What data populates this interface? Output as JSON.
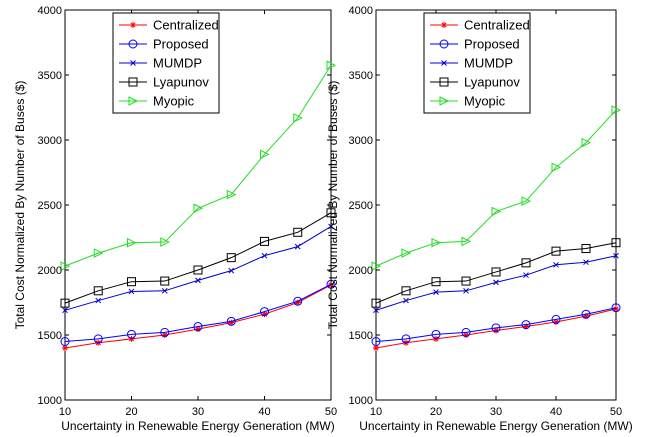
{
  "chart_data": [
    {
      "type": "line",
      "title": "",
      "xlabel": "Uncertainty in Renewable Energy Generation (MW)",
      "ylabel": "Total Cost Normalized By Number of Buses ($)",
      "xlim": [
        10,
        50
      ],
      "ylim": [
        1000,
        4000
      ],
      "xticks": [
        10,
        20,
        30,
        40,
        50
      ],
      "yticks": [
        1000,
        1500,
        2000,
        2500,
        3000,
        3500,
        4000
      ],
      "grid": false,
      "legend_position": "top-left",
      "x": [
        10,
        15,
        20,
        25,
        30,
        35,
        40,
        45,
        50
      ],
      "series": [
        {
          "name": "Centralized",
          "color": "#ff0000",
          "marker": "asterisk",
          "values": [
            1400,
            1440,
            1470,
            1500,
            1545,
            1595,
            1660,
            1750,
            1885
          ]
        },
        {
          "name": "Proposed",
          "color": "#0000ff",
          "marker": "circle",
          "values": [
            1450,
            1470,
            1505,
            1520,
            1565,
            1605,
            1680,
            1760,
            1890
          ]
        },
        {
          "name": "MUMDP",
          "color": "#0000cc",
          "marker": "x",
          "values": [
            1690,
            1765,
            1835,
            1840,
            1920,
            1995,
            2110,
            2180,
            2335
          ]
        },
        {
          "name": "Lyapunov",
          "color": "#000000",
          "marker": "square",
          "values": [
            1745,
            1840,
            1910,
            1915,
            2000,
            2095,
            2220,
            2290,
            2440
          ]
        },
        {
          "name": "Myopic",
          "color": "#22dd22",
          "marker": "triangle-right",
          "values": [
            2030,
            2130,
            2210,
            2215,
            2475,
            2580,
            2890,
            3170,
            3575
          ]
        }
      ]
    },
    {
      "type": "line",
      "title": "",
      "xlabel": "Uncertainty in Renewable Energy Generation (MW)",
      "ylabel": "Total Cost Normalized By Number of Buses ($)",
      "xlim": [
        10,
        50
      ],
      "ylim": [
        1000,
        4000
      ],
      "xticks": [
        10,
        20,
        30,
        40,
        50
      ],
      "yticks": [
        1000,
        1500,
        2000,
        2500,
        3000,
        3500,
        4000
      ],
      "grid": false,
      "legend_position": "top-left",
      "x": [
        10,
        15,
        20,
        25,
        30,
        35,
        40,
        45,
        50
      ],
      "series": [
        {
          "name": "Centralized",
          "color": "#ff0000",
          "marker": "asterisk",
          "values": [
            1400,
            1440,
            1470,
            1500,
            1535,
            1565,
            1600,
            1645,
            1700
          ]
        },
        {
          "name": "Proposed",
          "color": "#0000ff",
          "marker": "circle",
          "values": [
            1450,
            1470,
            1505,
            1520,
            1555,
            1580,
            1620,
            1660,
            1710
          ]
        },
        {
          "name": "MUMDP",
          "color": "#0000cc",
          "marker": "x",
          "values": [
            1690,
            1765,
            1830,
            1840,
            1905,
            1960,
            2040,
            2060,
            2110
          ]
        },
        {
          "name": "Lyapunov",
          "color": "#000000",
          "marker": "square",
          "values": [
            1745,
            1840,
            1910,
            1915,
            1985,
            2055,
            2145,
            2165,
            2210
          ]
        },
        {
          "name": "Myopic",
          "color": "#22dd22",
          "marker": "triangle-right",
          "values": [
            2030,
            2130,
            2210,
            2220,
            2450,
            2530,
            2790,
            2980,
            3230
          ]
        }
      ]
    }
  ]
}
